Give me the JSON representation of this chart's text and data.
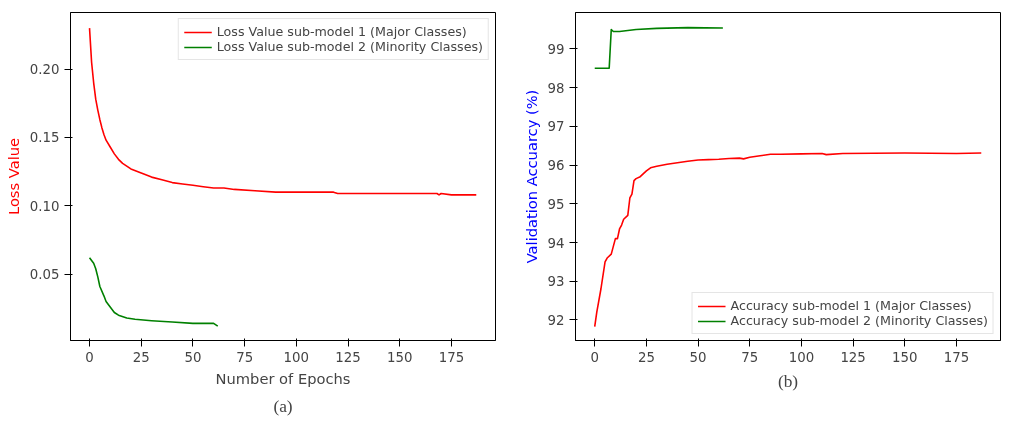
{
  "chart_data": [
    {
      "type": "line",
      "xlabel": "Number of Epochs",
      "ylabel": "Loss Value",
      "xlim": [
        -9.2,
        196.3
      ],
      "ylim": [
        0.0015,
        0.2414
      ],
      "xticks": [
        0,
        25,
        50,
        75,
        100,
        125,
        150,
        175
      ],
      "yticks": [
        {
          "value": 0.05,
          "label": "0.05"
        },
        {
          "value": 0.1,
          "label": "0.10"
        },
        {
          "value": 0.15,
          "label": "0.15"
        },
        {
          "value": 0.2,
          "label": "0.20"
        }
      ],
      "grid": false,
      "legend": "top right",
      "line_style": "solid",
      "annotations": [
        "(a)"
      ],
      "series": [
        {
          "name": "Loss Value sub-model 1 (Major Classes)",
          "color": "#ff0000",
          "x": [
            0,
            1,
            2,
            3,
            4,
            5,
            6,
            7,
            8,
            10,
            12,
            14,
            16,
            18,
            20,
            25,
            30,
            35,
            40,
            45,
            50,
            55,
            60,
            65,
            70,
            80,
            90,
            100,
            118,
            120,
            150,
            168,
            169,
            170,
            175,
            187
          ],
          "values": [
            0.23,
            0.205,
            0.19,
            0.178,
            0.17,
            0.163,
            0.157,
            0.152,
            0.148,
            0.143,
            0.138,
            0.134,
            0.131,
            0.129,
            0.127,
            0.124,
            0.121,
            0.119,
            0.117,
            0.116,
            0.115,
            0.114,
            0.113,
            0.113,
            0.112,
            0.111,
            0.11,
            0.11,
            0.11,
            0.109,
            0.109,
            0.109,
            0.108,
            0.109,
            0.108,
            0.108
          ]
        },
        {
          "name": "Loss Value sub-model 2 (Minority Classes)",
          "color": "#008000",
          "x": [
            0,
            2,
            3,
            4,
            5,
            7,
            8,
            10,
            12,
            14,
            18,
            22,
            30,
            40,
            50,
            60,
            62
          ],
          "values": [
            0.062,
            0.058,
            0.054,
            0.048,
            0.041,
            0.034,
            0.03,
            0.026,
            0.022,
            0.02,
            0.018,
            0.017,
            0.016,
            0.015,
            0.014,
            0.014,
            0.012
          ]
        }
      ]
    },
    {
      "type": "line",
      "ylabel": "Validation Accuarcy (%)",
      "xlim": [
        -9.3,
        196.3
      ],
      "ylim": [
        91.47,
        99.94
      ],
      "xticks": [
        0,
        25,
        50,
        75,
        100,
        125,
        150,
        175
      ],
      "yticks": [
        92,
        93,
        94,
        95,
        96,
        97,
        98,
        99
      ],
      "grid": false,
      "legend": "bottom right",
      "line_style": "solid",
      "annotations": [
        "(b)"
      ],
      "series": [
        {
          "name": "Accuracy sub-model 1 (Major Classes)",
          "color": "#ff0000",
          "x": [
            0,
            1,
            3,
            5,
            6,
            8,
            9,
            10,
            11,
            12,
            13,
            14,
            16,
            17,
            18,
            19,
            20,
            22,
            25,
            27,
            30,
            35,
            40,
            45,
            50,
            55,
            60,
            65,
            70,
            72,
            75,
            80,
            85,
            90,
            100,
            110,
            112,
            120,
            150,
            175,
            187
          ],
          "values": [
            91.83,
            92.2,
            92.8,
            93.5,
            93.6,
            93.7,
            93.9,
            94.1,
            94.1,
            94.35,
            94.45,
            94.6,
            94.7,
            95.15,
            95.25,
            95.6,
            95.65,
            95.7,
            95.85,
            95.93,
            95.97,
            96.02,
            96.06,
            96.1,
            96.13,
            96.14,
            96.15,
            96.17,
            96.18,
            96.16,
            96.2,
            96.24,
            96.28,
            96.28,
            96.29,
            96.3,
            96.27,
            96.3,
            96.31,
            96.3,
            96.31
          ]
        },
        {
          "name": "Accuracy sub-model 2 (Minority Classes)",
          "color": "#008000",
          "x": [
            0,
            7,
            8,
            9,
            12,
            20,
            30,
            45,
            62
          ],
          "values": [
            98.5,
            98.5,
            99.5,
            99.45,
            99.45,
            99.5,
            99.53,
            99.55,
            99.54
          ]
        }
      ]
    }
  ]
}
